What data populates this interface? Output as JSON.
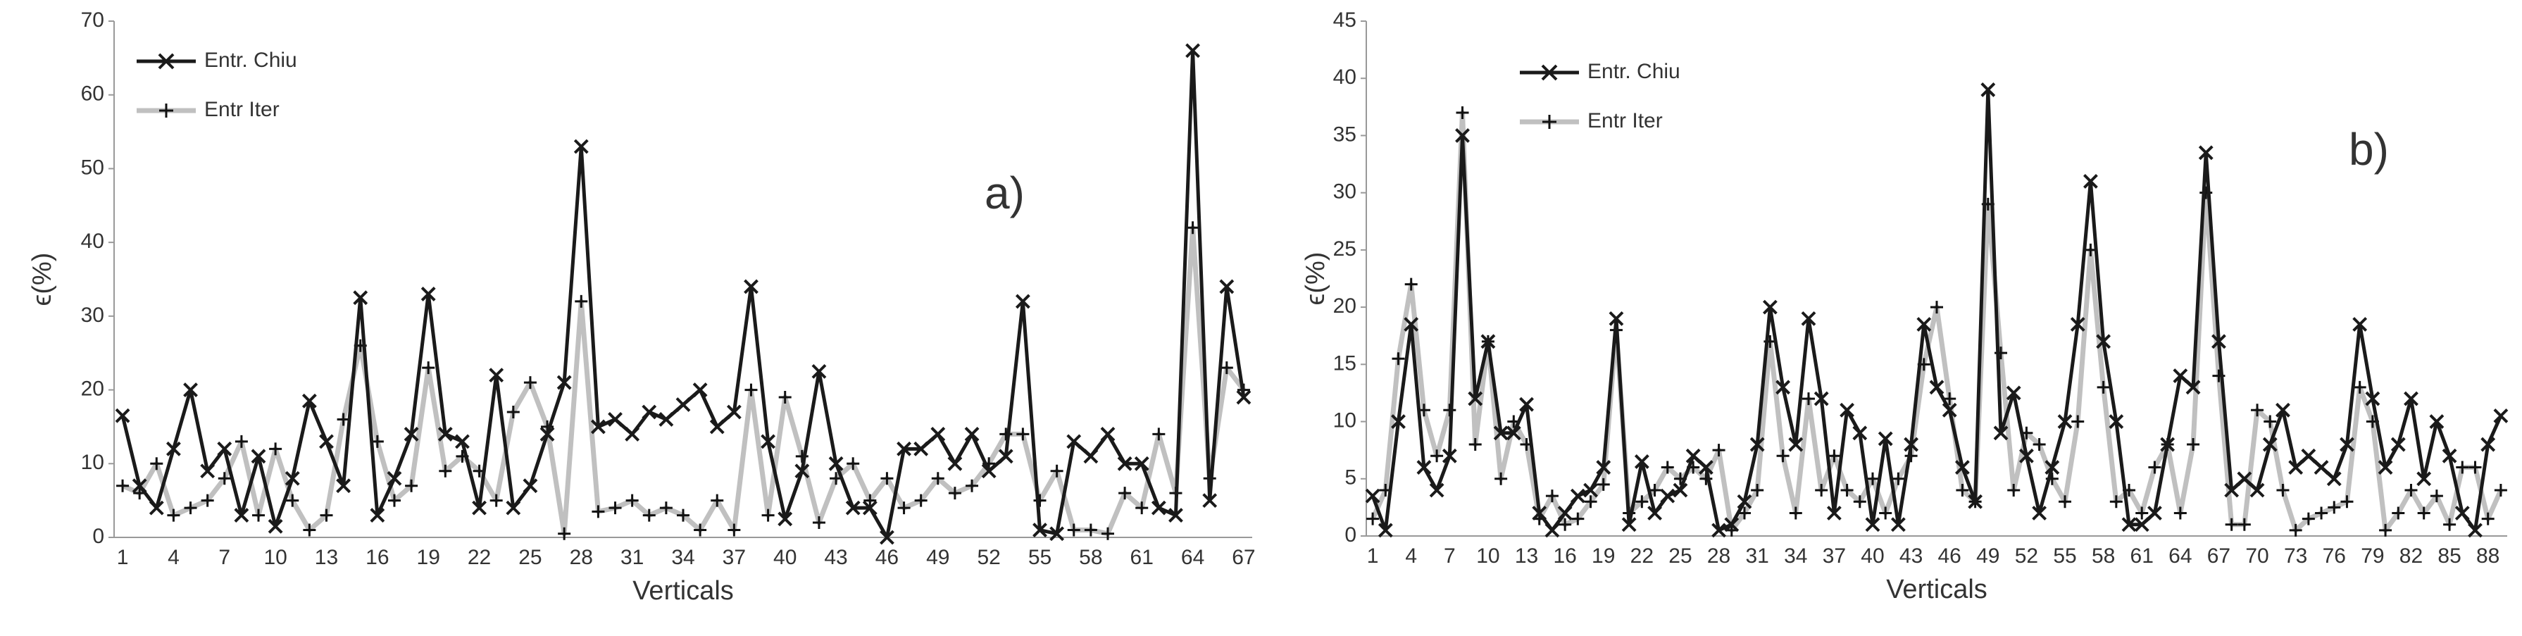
{
  "chart_data": [
    {
      "type": "line",
      "annotation": "a)",
      "xlabel": "Verticals",
      "ylabel": "ϵ(%)",
      "legend": "upper left",
      "grid": false,
      "categories": [
        "1",
        null,
        null,
        "4",
        null,
        null,
        "7",
        null,
        null,
        "10",
        null,
        null,
        "13",
        null,
        null,
        "16",
        null,
        null,
        "19",
        null,
        null,
        "22",
        null,
        null,
        "25",
        null,
        null,
        "28",
        null,
        null,
        "31",
        null,
        null,
        "34",
        null,
        null,
        "37",
        null,
        null,
        "40",
        null,
        null,
        "43",
        null,
        null,
        "46",
        null,
        null,
        "49",
        null,
        null,
        "52",
        null,
        null,
        "55",
        null,
        null,
        "58",
        null,
        null,
        "61",
        null,
        null,
        "64",
        null,
        null,
        "67"
      ],
      "ylim": [
        0,
        70
      ],
      "yticks": [
        0,
        10,
        20,
        30,
        40,
        50,
        60,
        70
      ],
      "series": [
        {
          "name": "Entr. Chiu",
          "color": "#1a1a1a",
          "marker": "x",
          "values": [
            16.5,
            7,
            4,
            12,
            20,
            9,
            12,
            3,
            11,
            1.5,
            8,
            18.5,
            13,
            7,
            32.5,
            3,
            8,
            14,
            33,
            14,
            13,
            4,
            22,
            4,
            7,
            14,
            21,
            53,
            15,
            16,
            14,
            17,
            16,
            18,
            20,
            15,
            17,
            34,
            13,
            2.5,
            9,
            22.5,
            10,
            4,
            4,
            0,
            12,
            12,
            14,
            10,
            14,
            9,
            11,
            32,
            1,
            0.5,
            13,
            11,
            14,
            10,
            10,
            4,
            3,
            66,
            5,
            34,
            19
          ]
        },
        {
          "name": "Entr Iter",
          "color": "#c0c0c0",
          "marker": "+",
          "values": [
            7,
            6,
            10,
            3,
            4,
            5,
            8,
            13,
            3,
            12,
            5,
            1,
            3,
            16,
            26,
            13,
            5,
            7,
            23,
            9,
            11,
            9,
            5,
            17,
            21,
            15,
            0.5,
            32,
            3.5,
            4,
            5,
            3,
            4,
            3,
            1,
            5,
            1,
            20,
            3,
            19,
            11,
            2,
            8,
            10,
            5,
            8,
            4,
            5,
            8,
            6,
            7,
            10,
            14,
            14,
            5,
            9,
            1,
            1,
            0.5,
            6,
            4,
            14,
            6,
            42,
            8,
            23,
            20
          ]
        }
      ]
    },
    {
      "type": "line",
      "annotation": "b)",
      "xlabel": "Verticals",
      "ylabel": "ϵ(%)",
      "legend": "upper left",
      "grid": false,
      "categories": [
        "1",
        null,
        null,
        "4",
        null,
        null,
        "7",
        null,
        null,
        "10",
        null,
        null,
        "13",
        null,
        null,
        "16",
        null,
        null,
        "19",
        null,
        null,
        "22",
        null,
        null,
        "25",
        null,
        null,
        "28",
        null,
        null,
        "31",
        null,
        null,
        "34",
        null,
        null,
        "37",
        null,
        null,
        "40",
        null,
        null,
        "43",
        null,
        null,
        "46",
        null,
        null,
        "49",
        null,
        null,
        "52",
        null,
        null,
        "55",
        null,
        null,
        "58",
        null,
        null,
        "61",
        null,
        null,
        "64",
        null,
        null,
        "67",
        null,
        null,
        "70",
        null,
        null,
        "73",
        null,
        null,
        "76",
        null,
        null,
        "79",
        null,
        null,
        "82",
        null,
        null,
        "85",
        null,
        null,
        "88",
        null
      ],
      "ylim": [
        0,
        45
      ],
      "yticks": [
        0,
        5,
        10,
        15,
        20,
        25,
        30,
        35,
        40,
        45
      ],
      "series": [
        {
          "name": "Entr. Chiu",
          "color": "#1a1a1a",
          "marker": "x",
          "values": [
            3.5,
            0.5,
            10,
            18.5,
            6,
            4,
            7,
            35,
            12,
            17,
            9,
            9,
            11.5,
            2,
            0.5,
            2,
            3.5,
            4,
            6,
            19,
            1,
            6.5,
            2,
            3.5,
            4,
            7,
            6,
            0.5,
            1,
            3,
            8,
            20,
            13,
            8,
            19,
            12,
            2,
            11,
            9,
            1,
            8.5,
            1,
            8,
            18.5,
            13,
            11,
            6,
            3,
            39,
            9,
            12.5,
            7,
            2,
            6,
            10,
            18.5,
            31,
            17,
            10,
            1,
            1,
            2,
            8,
            14,
            13,
            33.5,
            17,
            4,
            5,
            4,
            8,
            11,
            6,
            7,
            6,
            5,
            8,
            18.5,
            12,
            6,
            8,
            12,
            5,
            10,
            7,
            2,
            0.5,
            8,
            10.5
          ]
        },
        {
          "name": "Entr Iter",
          "color": "#c0c0c0",
          "marker": "+",
          "values": [
            1.5,
            4,
            15.5,
            22,
            11,
            7,
            11,
            37,
            8,
            17,
            5,
            10,
            8,
            1.5,
            3.5,
            1,
            1.5,
            3,
            4.5,
            18,
            2,
            3,
            4,
            6,
            5,
            6,
            5,
            7.5,
            0.5,
            2,
            4,
            17,
            7,
            2,
            12,
            4,
            7,
            4,
            3,
            5,
            2,
            5,
            7,
            15,
            20,
            12,
            4,
            3,
            29,
            16,
            4,
            9,
            8,
            5,
            3,
            10,
            25,
            13,
            3,
            4,
            2,
            6,
            8,
            2,
            8,
            30,
            14,
            1,
            1,
            11,
            10,
            4,
            0.5,
            1.5,
            2,
            2.5,
            3,
            13,
            10,
            0.5,
            2,
            4,
            2,
            3.5,
            1,
            6,
            6,
            1.5,
            4
          ]
        }
      ]
    }
  ]
}
